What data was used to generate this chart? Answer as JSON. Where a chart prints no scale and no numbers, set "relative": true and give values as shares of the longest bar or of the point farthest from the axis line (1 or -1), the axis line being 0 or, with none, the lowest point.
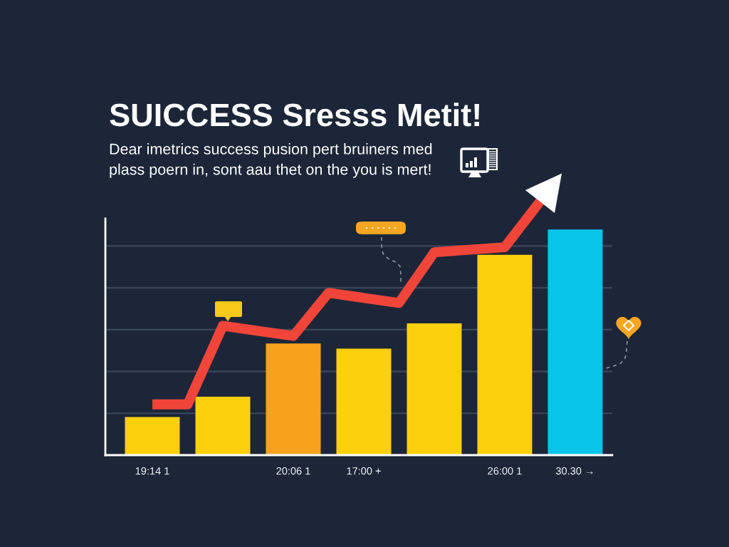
{
  "chart_data": {
    "type": "bar",
    "title": "SUICCESS Sresss Metit!",
    "subtitle": "Dear imetrics success pusion pert bruiners med\nplass poern in, sont aau thet on the you is mert!",
    "categories": [
      "19:14 1",
      null,
      null,
      null,
      "20:06 1",
      null,
      "17:00 +",
      null,
      null,
      null,
      "26:00 1",
      null,
      "30.30 →"
    ],
    "relative": true,
    "series": [
      {
        "colors": [
          "#fcd00c",
          null,
          "#fcd00c",
          null,
          "#f8a11c",
          null,
          "#fcd00c",
          null,
          "#fcd00c",
          null,
          "#fcd00c",
          null,
          "#08c5ea"
        ],
        "values": [
          0.15,
          null,
          0.23,
          null,
          0.44,
          null,
          0.42,
          null,
          0.52,
          null,
          0.79,
          null,
          0.89
        ]
      },
      {
        "type": "line",
        "color": "#f1453a",
        "values": [
          0.2,
          0.2,
          0.51,
          0.49,
          0.47,
          0.64,
          0.62,
          0.6,
          0.8,
          0.81,
          0.82,
          1,
          null
        ]
      }
    ],
    "grid": "y",
    "tick_labels": "x"
  }
}
